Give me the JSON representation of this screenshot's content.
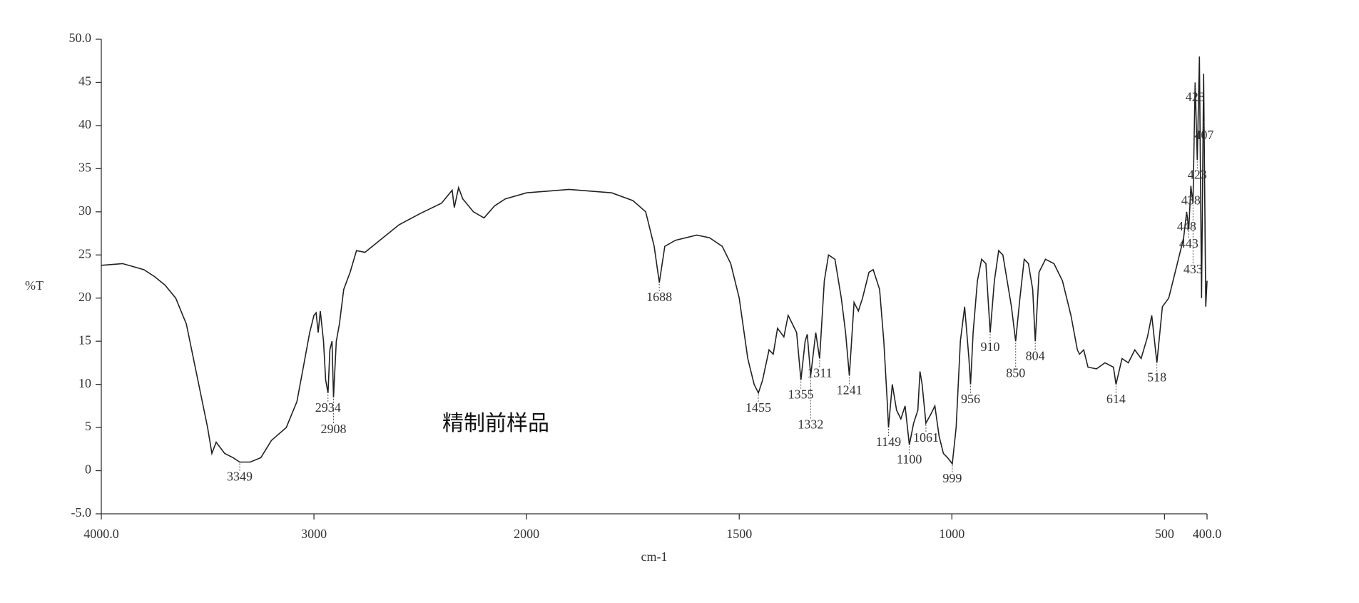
{
  "chart_data": {
    "type": "line",
    "xlabel": "cm-1",
    "ylabel": "%T",
    "annotation": "精制前样品",
    "xlim": [
      4000,
      400
    ],
    "x_scale_break": 2000,
    "xticks": [
      {
        "value": 4000,
        "label": "4000.0"
      },
      3000,
      2000,
      1500,
      1000,
      500,
      {
        "value": 400,
        "label": "400.0"
      }
    ],
    "ylim": [
      -5,
      50
    ],
    "yticks": [
      {
        "value": -5,
        "label": "-5.0"
      },
      0,
      5,
      10,
      15,
      20,
      25,
      30,
      35,
      40,
      45,
      {
        "value": 50,
        "label": "50.0"
      }
    ],
    "grid": false,
    "series": [
      {
        "color": "#222222",
        "x": [
          4000,
          3900,
          3800,
          3750,
          3700,
          3650,
          3600,
          3550,
          3500,
          3480,
          3460,
          3420,
          3380,
          3349,
          3300,
          3250,
          3200,
          3130,
          3080,
          3050,
          3020,
          3000,
          2990,
          2980,
          2970,
          2955,
          2945,
          2934,
          2925,
          2915,
          2908,
          2895,
          2880,
          2860,
          2830,
          2800,
          2760,
          2700,
          2600,
          2500,
          2400,
          2350,
          2340,
          2320,
          2300,
          2250,
          2200,
          2150,
          2100,
          2000,
          1900,
          1800,
          1750,
          1720,
          1700,
          1688,
          1675,
          1650,
          1600,
          1570,
          1540,
          1520,
          1500,
          1480,
          1465,
          1455,
          1445,
          1430,
          1420,
          1410,
          1395,
          1385,
          1375,
          1365,
          1355,
          1345,
          1340,
          1332,
          1320,
          1311,
          1300,
          1290,
          1275,
          1260,
          1250,
          1241,
          1230,
          1220,
          1210,
          1195,
          1185,
          1170,
          1160,
          1152,
          1149,
          1140,
          1130,
          1120,
          1110,
          1100,
          1090,
          1080,
          1075,
          1070,
          1061,
          1050,
          1040,
          1030,
          1020,
          1010,
          999,
          990,
          980,
          970,
          960,
          956,
          950,
          940,
          930,
          920,
          910,
          900,
          890,
          880,
          870,
          860,
          850,
          840,
          830,
          820,
          810,
          804,
          795,
          780,
          760,
          740,
          720,
          705,
          700,
          690,
          680,
          660,
          640,
          620,
          614,
          600,
          585,
          570,
          555,
          540,
          530,
          518,
          505,
          490,
          470,
          455,
          448,
          443,
          438,
          433,
          428,
          423,
          418,
          413,
          408,
          403,
          400
        ],
        "values": [
          23.8,
          24.0,
          23.3,
          22.5,
          21.5,
          20.0,
          17,
          11,
          5,
          2,
          3.3,
          2,
          1.5,
          1.0,
          1.0,
          1.5,
          3.5,
          5,
          8,
          12,
          16,
          18,
          18.3,
          16,
          18.5,
          15,
          10.5,
          9,
          14,
          15,
          8.5,
          15,
          17,
          21,
          23,
          25.5,
          25.3,
          26.5,
          28.5,
          29.8,
          31,
          32.5,
          30.5,
          32.8,
          31.5,
          30,
          29.3,
          30.7,
          31.5,
          32.2,
          32.6,
          32.2,
          31.3,
          30,
          26,
          21.8,
          26,
          26.7,
          27.3,
          27,
          26,
          24,
          20,
          13,
          10,
          9,
          10.5,
          14,
          13.5,
          16.5,
          15.5,
          18,
          17,
          16,
          10.5,
          15,
          15.8,
          11,
          16,
          13,
          22,
          25,
          24.5,
          20,
          16,
          11,
          19.5,
          18.5,
          20,
          23,
          23.3,
          21,
          15,
          8,
          5,
          10,
          7,
          6,
          7.5,
          3,
          5.5,
          7,
          11.5,
          10,
          5.5,
          6.5,
          7.5,
          4,
          2,
          1.5,
          0.8,
          5,
          15,
          19,
          13,
          10,
          16,
          22,
          24.5,
          24,
          16,
          22,
          25.5,
          25,
          22,
          19,
          15,
          20,
          24.5,
          24,
          21,
          15,
          23,
          24.5,
          24,
          22,
          18,
          14,
          13.5,
          14,
          12,
          11.8,
          12.5,
          12,
          10,
          13,
          12.5,
          14,
          13,
          15.5,
          18,
          12.5,
          19,
          20,
          24,
          27,
          30,
          28,
          33,
          31,
          45,
          36,
          48,
          20,
          46,
          19,
          22
        ]
      }
    ],
    "peaks": [
      3349,
      2934,
      2908,
      1688,
      1455,
      1355,
      1332,
      1311,
      1241,
      1149,
      1100,
      1061,
      999,
      956,
      910,
      850,
      804,
      614,
      518,
      407,
      448,
      443,
      438,
      433,
      428,
      423
    ]
  }
}
